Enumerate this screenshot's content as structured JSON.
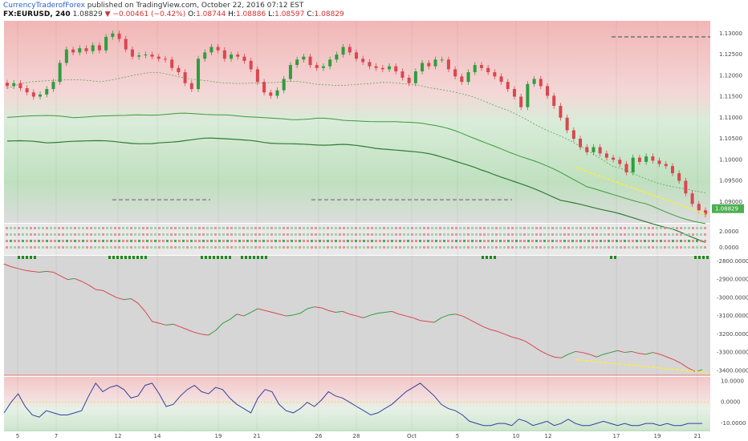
{
  "header": {
    "author": "CurrencyTraderofForex",
    "published": " published on TradingView.com, October 22, 2016 07:12 EST",
    "symbol": "FX:EURUSD, 240",
    "last": "1.08829",
    "change": "−0.00461 (−0.42%)",
    "o_label": "O:",
    "o_val": "1.08744",
    "h_label": "H:",
    "h_val": "1.08886",
    "l_label": "L:",
    "l_val": "1.08597",
    "c_label": "C:",
    "c_val": "1.08829"
  },
  "colors": {
    "up": "#2e9e3e",
    "down": "#d9474f",
    "trendline": "#ffeb3b",
    "price_tag": "#4caf50"
  },
  "chart_data": [
    {
      "type": "candlestick",
      "panel": "price",
      "ylim": [
        1.085,
        1.133
      ],
      "y_ticks": [
        "1.13000",
        "1.12500",
        "1.12000",
        "1.11500",
        "1.11000",
        "1.10500",
        "1.10000",
        "1.09500",
        "1.09000"
      ],
      "last_price_tag": "1.08829",
      "x_ticks": [
        "5",
        "7",
        "12",
        "14",
        "19",
        "21",
        "26",
        "28",
        "Oct",
        "5",
        "10",
        "12",
        "17",
        "19",
        "21"
      ],
      "close_path": [
        1.1175,
        1.1182,
        1.117,
        1.116,
        1.115,
        1.1155,
        1.1168,
        1.1185,
        1.123,
        1.1262,
        1.1255,
        1.1265,
        1.1258,
        1.1272,
        1.126,
        1.1292,
        1.13,
        1.1287,
        1.1262,
        1.1245,
        1.1248,
        1.125,
        1.1245,
        1.124,
        1.1238,
        1.1218,
        1.1208,
        1.1182,
        1.1168,
        1.124,
        1.1255,
        1.1268,
        1.126,
        1.124,
        1.125,
        1.1245,
        1.1235,
        1.1215,
        1.1185,
        1.116,
        1.1152,
        1.1165,
        1.1192,
        1.1225,
        1.1238,
        1.1245,
        1.1225,
        1.1218,
        1.1222,
        1.1238,
        1.125,
        1.1268,
        1.1255,
        1.124,
        1.1232,
        1.1222,
        1.1218,
        1.1215,
        1.1222,
        1.121,
        1.1195,
        1.1182,
        1.121,
        1.123,
        1.1222,
        1.1238,
        1.1238,
        1.1215,
        1.1198,
        1.1185,
        1.1208,
        1.1225,
        1.1218,
        1.1208,
        1.1198,
        1.1185,
        1.1168,
        1.115,
        1.1125,
        1.118,
        1.1192,
        1.1175,
        1.1152,
        1.1128,
        1.11,
        1.107,
        1.105,
        1.103,
        1.1018,
        1.103,
        1.1015,
        1.1005,
        1.1,
        1.099,
        1.097,
        1.1005,
        1.0995,
        1.1008,
        1.0998,
        1.099,
        1.0985,
        1.0968,
        1.095,
        1.092,
        1.0895,
        1.088,
        1.087
      ],
      "trend_line": [
        [
          0.82,
          1.0982
        ],
        [
          1.0,
          1.087
        ]
      ],
      "resistance_levels": [
        1.1292,
        1.0905
      ]
    },
    {
      "type": "signals",
      "panel": "rows",
      "y_ticks": [
        "2.0000",
        "0.0000"
      ]
    },
    {
      "type": "line",
      "panel": "oscillator_1",
      "ylim": [
        -3425,
        -2770
      ],
      "y_ticks": [
        "-2800.0000",
        "-2900.0000",
        "-3000.0000",
        "-3100.0000",
        "-3200.0000",
        "-3300.0000",
        "-3400.0000"
      ],
      "values": [
        -2815,
        -2830,
        -2840,
        -2850,
        -2855,
        -2860,
        -2855,
        -2860,
        -2880,
        -2900,
        -2895,
        -2910,
        -2930,
        -2955,
        -2960,
        -2980,
        -3000,
        -3010,
        -3005,
        -3030,
        -3075,
        -3130,
        -3140,
        -3150,
        -3145,
        -3160,
        -3175,
        -3190,
        -3200,
        -3205,
        -3180,
        -3140,
        -3120,
        -3090,
        -3100,
        -3080,
        -3060,
        -3070,
        -3080,
        -3090,
        -3100,
        -3095,
        -3085,
        -3060,
        -3050,
        -3055,
        -3070,
        -3080,
        -3075,
        -3090,
        -3100,
        -3110,
        -3095,
        -3085,
        -3080,
        -3075,
        -3090,
        -3100,
        -3110,
        -3125,
        -3130,
        -3135,
        -3110,
        -3095,
        -3090,
        -3100,
        -3120,
        -3140,
        -3160,
        -3175,
        -3185,
        -3200,
        -3215,
        -3225,
        -3240,
        -3265,
        -3290,
        -3310,
        -3325,
        -3330,
        -3310,
        -3295,
        -3300,
        -3310,
        -3325,
        -3310,
        -3300,
        -3290,
        -3300,
        -3295,
        -3305,
        -3310,
        -3300,
        -3310,
        -3325,
        -3340,
        -3360,
        -3385,
        -3405,
        -3395
      ],
      "trend_line": [
        [
          0.82,
          -3340
        ],
        [
          1.0,
          -3410
        ]
      ],
      "level": -3420
    },
    {
      "type": "line",
      "panel": "oscillator_2",
      "ylim": [
        -13,
        12
      ],
      "y_ticks": [
        "10.0000",
        "0.0000",
        "-10.0000"
      ],
      "values": [
        -5,
        0,
        4,
        -2,
        -6,
        -7,
        -4,
        -5,
        -6,
        -6,
        -5,
        -4,
        3,
        9,
        5,
        7,
        8,
        6,
        2,
        3,
        8,
        9,
        4,
        -2,
        -1,
        3,
        6,
        8,
        5,
        4,
        7,
        6,
        2,
        -1,
        -3,
        -5,
        2,
        6,
        5,
        -1,
        -4,
        -5,
        -3,
        0,
        -2,
        1,
        5,
        3,
        2,
        0,
        -2,
        -4,
        -6,
        -5,
        -3,
        -1,
        2,
        5,
        7,
        9,
        6,
        3,
        -1,
        -3,
        -4,
        -6,
        -9,
        -10,
        -11,
        -11,
        -10,
        -10,
        -11,
        -8,
        -9,
        -11,
        -10,
        -9,
        -11,
        -10,
        -8,
        -10,
        -11,
        -11,
        -10,
        -9,
        -10,
        -11,
        -10,
        -11,
        -11,
        -10,
        -10,
        -11,
        -10,
        -11,
        -11,
        -10,
        -10,
        -10
      ]
    }
  ]
}
